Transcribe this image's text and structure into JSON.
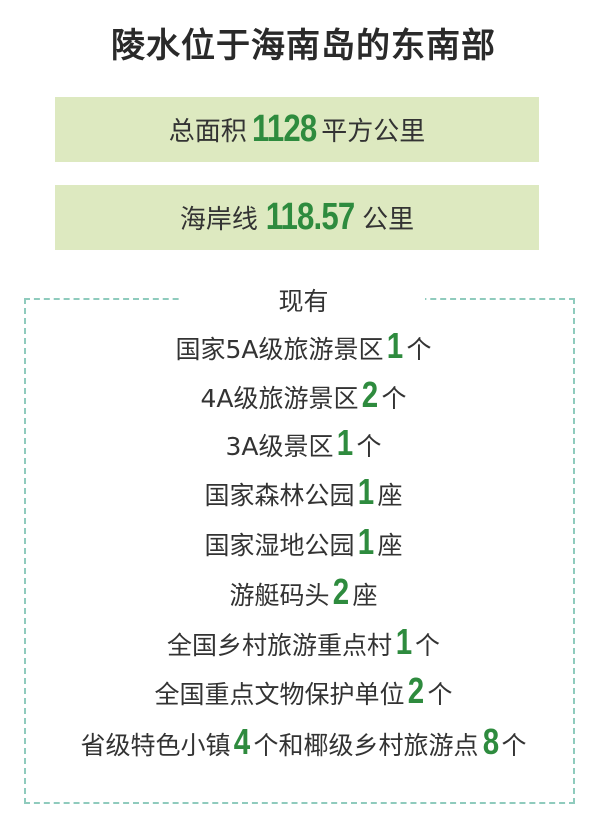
{
  "title": "陵水位于海南岛的东南部",
  "colors": {
    "number": "#2e8b3e",
    "box_bg": "#dde9c0",
    "dash_border": "#8fcbbd"
  },
  "stats": [
    {
      "pre": "总面积",
      "num": "1128",
      "post": "平方公里"
    },
    {
      "pre": "海岸线",
      "num": "118.57",
      "post": "公里"
    }
  ],
  "list_heading": "现有",
  "items": [
    {
      "pre": "国家5A级旅游景区",
      "num": "1",
      "post": "个"
    },
    {
      "pre": "4A级旅游景区",
      "num": "2",
      "post": "个"
    },
    {
      "pre": "3A级景区",
      "num": "1",
      "post": "个"
    },
    {
      "pre": "国家森林公园",
      "num": "1",
      "post": "座"
    },
    {
      "pre": "国家湿地公园",
      "num": "1",
      "post": "座"
    },
    {
      "pre": "游艇码头",
      "num": "2",
      "post": "座"
    },
    {
      "pre": "全国乡村旅游重点村",
      "num": "1",
      "post": "个"
    },
    {
      "pre": "全国重点文物保护单位",
      "num": "2",
      "post": "个"
    },
    {
      "pre": "省级特色小镇",
      "num": "4",
      "post": "个和椰级乡村旅游点",
      "num2": "8",
      "post2": "个"
    }
  ]
}
